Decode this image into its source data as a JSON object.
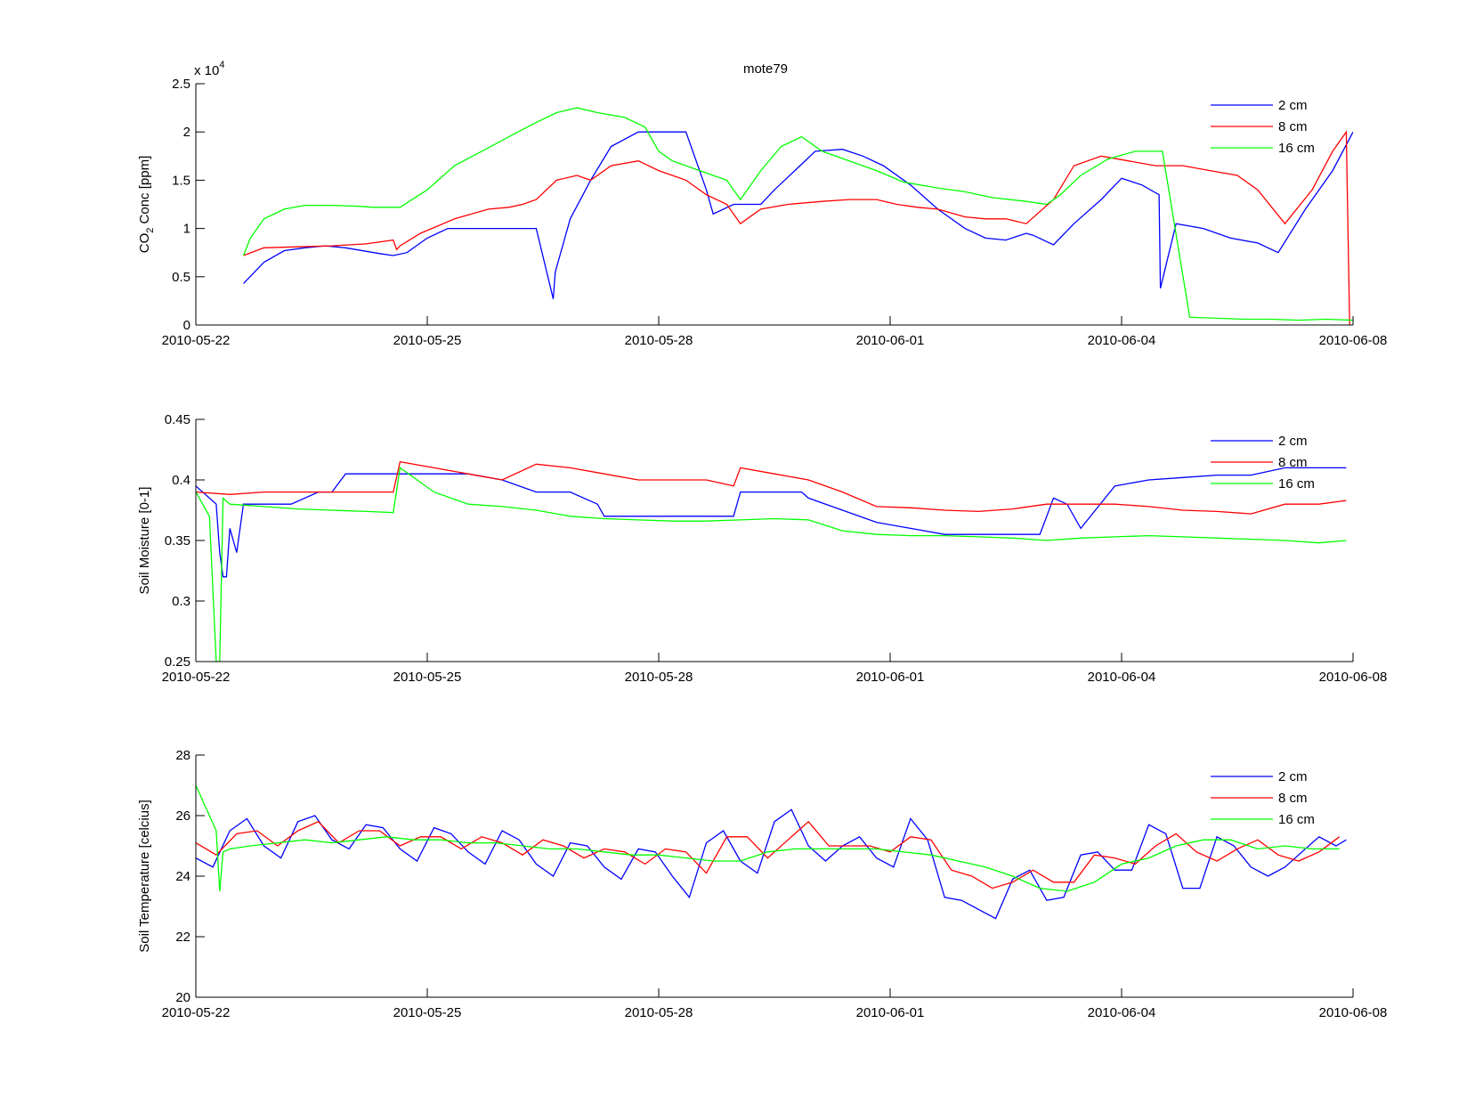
{
  "chart_data": [
    {
      "type": "line",
      "title": "mote79",
      "ylabel_main": "CO",
      "ylabel_sub": "2",
      "ylabel_rest": " Conc [ppm]",
      "exponent_base": "x 10",
      "exponent_power": "4",
      "xlim": [
        0,
        17
      ],
      "ylim": [
        0,
        2.5
      ],
      "ytick_values": [
        0,
        0.5,
        1,
        1.5,
        2,
        2.5
      ],
      "ytick_labels": [
        "0",
        "0.5",
        "1",
        "1.5",
        "2",
        "2.5"
      ],
      "legend_position": "top-right",
      "series": [
        {
          "name": "2 cm",
          "color": "#0000ff",
          "x": [
            0.7,
            1.0,
            1.3,
            1.6,
            1.9,
            2.2,
            2.7,
            2.9,
            3.1,
            3.4,
            3.7,
            3.8,
            4.2,
            4.6,
            5.0,
            5.25,
            5.28,
            5.5,
            5.8,
            6.1,
            6.5,
            6.8,
            7.2,
            7.5,
            7.6,
            7.9,
            8.3,
            8.5,
            8.8,
            9.1,
            9.5,
            9.8,
            10.1,
            10.5,
            10.9,
            11.3,
            11.6,
            11.9,
            12.2,
            12.3,
            12.6,
            12.9,
            13.3,
            13.6,
            13.9,
            14.15,
            14.17,
            14.4,
            14.8,
            15.2,
            15.6,
            15.9,
            16.3,
            16.7,
            17.0
          ],
          "y": [
            0.43,
            0.65,
            0.77,
            0.8,
            0.82,
            0.8,
            0.74,
            0.72,
            0.75,
            0.9,
            1.0,
            1.0,
            1.0,
            1.0,
            1.0,
            0.27,
            0.55,
            1.1,
            1.5,
            1.85,
            2.0,
            2.0,
            2.0,
            1.4,
            1.15,
            1.25,
            1.25,
            1.4,
            1.6,
            1.8,
            1.82,
            1.75,
            1.65,
            1.45,
            1.2,
            1.0,
            0.9,
            0.88,
            0.95,
            0.93,
            0.83,
            1.05,
            1.3,
            1.52,
            1.45,
            1.35,
            0.38,
            1.05,
            1.0,
            0.9,
            0.85,
            0.75,
            1.2,
            1.6,
            2.0
          ]
        },
        {
          "name": "8 cm",
          "color": "#ff0000",
          "x": [
            0.7,
            1.0,
            1.5,
            2.0,
            2.5,
            2.9,
            2.95,
            3.0,
            3.3,
            3.8,
            4.3,
            4.6,
            4.8,
            5.0,
            5.3,
            5.6,
            5.8,
            6.1,
            6.5,
            6.8,
            7.2,
            7.5,
            7.8,
            8.0,
            8.3,
            8.7,
            9.2,
            9.6,
            10.0,
            10.3,
            10.6,
            10.9,
            11.3,
            11.6,
            11.9,
            12.2,
            12.6,
            12.9,
            13.3,
            13.7,
            14.1,
            14.5,
            14.9,
            15.3,
            15.6,
            16.0,
            16.4,
            16.7,
            16.9,
            16.95
          ],
          "y": [
            0.72,
            0.8,
            0.81,
            0.82,
            0.84,
            0.88,
            0.78,
            0.82,
            0.95,
            1.1,
            1.2,
            1.22,
            1.25,
            1.3,
            1.5,
            1.55,
            1.5,
            1.65,
            1.7,
            1.6,
            1.5,
            1.35,
            1.25,
            1.05,
            1.2,
            1.25,
            1.28,
            1.3,
            1.3,
            1.25,
            1.22,
            1.2,
            1.12,
            1.1,
            1.1,
            1.05,
            1.3,
            1.65,
            1.75,
            1.7,
            1.65,
            1.65,
            1.6,
            1.55,
            1.4,
            1.05,
            1.4,
            1.8,
            2.0,
            0.0
          ]
        },
        {
          "name": "16 cm",
          "color": "#00ff00",
          "x": [
            0.7,
            0.8,
            1.0,
            1.3,
            1.6,
            2.0,
            2.4,
            2.6,
            2.8,
            3.0,
            3.4,
            3.8,
            4.2,
            4.6,
            5.0,
            5.3,
            5.6,
            5.9,
            6.3,
            6.6,
            6.8,
            7.0,
            7.4,
            7.8,
            8.0,
            8.3,
            8.6,
            8.9,
            9.2,
            9.6,
            10.0,
            10.4,
            10.9,
            11.3,
            11.7,
            12.2,
            12.5,
            12.7,
            13.0,
            13.4,
            13.8,
            14.2,
            14.6,
            15.0,
            15.4,
            15.8,
            16.2,
            16.6,
            17.0
          ],
          "y": [
            0.72,
            0.9,
            1.1,
            1.2,
            1.24,
            1.24,
            1.23,
            1.22,
            1.22,
            1.22,
            1.4,
            1.65,
            1.8,
            1.95,
            2.1,
            2.2,
            2.25,
            2.2,
            2.15,
            2.05,
            1.8,
            1.7,
            1.6,
            1.5,
            1.3,
            1.6,
            1.85,
            1.95,
            1.8,
            1.7,
            1.6,
            1.48,
            1.42,
            1.38,
            1.32,
            1.28,
            1.25,
            1.35,
            1.55,
            1.72,
            1.8,
            1.8,
            0.08,
            0.07,
            0.06,
            0.06,
            0.05,
            0.06,
            0.05
          ]
        }
      ],
      "xtick_labels": [
        "2010-05-22",
        "2010-05-25",
        "2010-05-28",
        "2010-06-01",
        "2010-06-04",
        "2010-06-08"
      ]
    },
    {
      "type": "line",
      "ylabel": "Soil Moisture [0-1]",
      "xlim": [
        0,
        17
      ],
      "ylim": [
        0.25,
        0.45
      ],
      "ytick_values": [
        0.25,
        0.3,
        0.35,
        0.4,
        0.45
      ],
      "ytick_labels": [
        "0.25",
        "0.3",
        "0.35",
        "0.4",
        "0.45"
      ],
      "legend_position": "top-right",
      "series": [
        {
          "name": "2 cm",
          "color": "#0000ff",
          "x": [
            0.0,
            0.2,
            0.3,
            0.35,
            0.4,
            0.45,
            0.5,
            0.6,
            0.7,
            0.8,
            1.0,
            1.4,
            1.8,
            2.0,
            2.2,
            2.6,
            3.0,
            3.5,
            4.0,
            4.5,
            5.0,
            5.5,
            5.9,
            6.0,
            6.5,
            7.0,
            7.5,
            7.9,
            8.0,
            8.5,
            8.9,
            9.0,
            9.5,
            10.0,
            10.5,
            11.0,
            11.5,
            11.9,
            12.0,
            12.1,
            12.4,
            12.5,
            12.6,
            12.8,
            13.0,
            13.5,
            14.0,
            14.5,
            15.0,
            15.5,
            16.0,
            16.5,
            16.9
          ],
          "y": [
            0.395,
            0.385,
            0.38,
            0.34,
            0.32,
            0.32,
            0.36,
            0.34,
            0.38,
            0.38,
            0.38,
            0.38,
            0.39,
            0.39,
            0.405,
            0.405,
            0.405,
            0.405,
            0.405,
            0.4,
            0.39,
            0.39,
            0.38,
            0.37,
            0.37,
            0.37,
            0.37,
            0.37,
            0.39,
            0.39,
            0.39,
            0.385,
            0.375,
            0.365,
            0.36,
            0.355,
            0.355,
            0.355,
            0.355,
            0.355,
            0.355,
            0.37,
            0.385,
            0.38,
            0.36,
            0.395,
            0.4,
            0.402,
            0.404,
            0.404,
            0.41,
            0.41,
            0.41
          ]
        },
        {
          "name": "8 cm",
          "color": "#ff0000",
          "x": [
            0.0,
            0.5,
            1.0,
            1.5,
            2.0,
            2.5,
            2.9,
            3.0,
            3.5,
            4.0,
            4.5,
            5.0,
            5.5,
            6.0,
            6.5,
            7.0,
            7.5,
            7.9,
            8.0,
            8.5,
            9.0,
            9.5,
            10.0,
            10.5,
            11.0,
            11.5,
            12.0,
            12.5,
            13.0,
            13.5,
            14.0,
            14.5,
            15.0,
            15.5,
            16.0,
            16.5,
            16.9
          ],
          "y": [
            0.39,
            0.388,
            0.39,
            0.39,
            0.39,
            0.39,
            0.39,
            0.415,
            0.41,
            0.405,
            0.4,
            0.413,
            0.41,
            0.405,
            0.4,
            0.4,
            0.4,
            0.395,
            0.41,
            0.405,
            0.4,
            0.39,
            0.378,
            0.377,
            0.375,
            0.374,
            0.376,
            0.38,
            0.38,
            0.38,
            0.378,
            0.375,
            0.374,
            0.372,
            0.38,
            0.38,
            0.383
          ]
        },
        {
          "name": "16 cm",
          "color": "#00ff00",
          "x": [
            0.0,
            0.2,
            0.3,
            0.35,
            0.4,
            0.5,
            1.0,
            1.5,
            2.0,
            2.5,
            2.9,
            3.0,
            3.5,
            4.0,
            4.5,
            5.0,
            5.5,
            6.0,
            6.5,
            7.0,
            7.5,
            8.0,
            8.5,
            9.0,
            9.5,
            10.0,
            10.5,
            11.0,
            11.5,
            12.0,
            12.5,
            13.0,
            13.5,
            14.0,
            14.5,
            15.0,
            15.5,
            16.0,
            16.5,
            16.9
          ],
          "y": [
            0.39,
            0.37,
            0.25,
            0.25,
            0.385,
            0.38,
            0.378,
            0.376,
            0.375,
            0.374,
            0.373,
            0.41,
            0.39,
            0.38,
            0.378,
            0.375,
            0.37,
            0.368,
            0.367,
            0.366,
            0.366,
            0.367,
            0.368,
            0.367,
            0.358,
            0.355,
            0.354,
            0.354,
            0.353,
            0.352,
            0.35,
            0.352,
            0.353,
            0.354,
            0.353,
            0.352,
            0.351,
            0.35,
            0.348,
            0.35
          ]
        }
      ],
      "xtick_labels": [
        "2010-05-22",
        "2010-05-25",
        "2010-05-28",
        "2010-06-01",
        "2010-06-04",
        "2010-06-08"
      ]
    },
    {
      "type": "line",
      "ylabel": "Soil Temperature [celcius]",
      "xlim": [
        0,
        17
      ],
      "ylim": [
        20,
        28
      ],
      "ytick_values": [
        20,
        22,
        24,
        26,
        28
      ],
      "ytick_labels": [
        "20",
        "22",
        "24",
        "26",
        "28"
      ],
      "legend_position": "top-right",
      "series": [
        {
          "name": "2 cm",
          "color": "#0000ff",
          "x": [
            0.0,
            0.25,
            0.5,
            0.75,
            1.0,
            1.25,
            1.5,
            1.75,
            2.0,
            2.25,
            2.5,
            2.75,
            3.0,
            3.25,
            3.5,
            3.75,
            4.0,
            4.25,
            4.5,
            4.75,
            5.0,
            5.25,
            5.5,
            5.75,
            6.0,
            6.25,
            6.5,
            6.75,
            7.0,
            7.25,
            7.5,
            7.75,
            8.0,
            8.25,
            8.5,
            8.75,
            9.0,
            9.25,
            9.5,
            9.75,
            10.0,
            10.25,
            10.5,
            10.75,
            11.0,
            11.25,
            11.5,
            11.75,
            12.0,
            12.25,
            12.5,
            12.75,
            13.0,
            13.25,
            13.5,
            13.75,
            14.0,
            14.25,
            14.5,
            14.75,
            15.0,
            15.25,
            15.5,
            15.75,
            16.0,
            16.25,
            16.5,
            16.75,
            16.9
          ],
          "y": [
            24.6,
            24.3,
            25.5,
            25.9,
            25.0,
            24.6,
            25.8,
            26.0,
            25.2,
            24.9,
            25.7,
            25.6,
            24.9,
            24.5,
            25.6,
            25.4,
            24.8,
            24.4,
            25.5,
            25.2,
            24.4,
            24.0,
            25.1,
            25.0,
            24.3,
            23.9,
            24.9,
            24.8,
            24.0,
            23.3,
            25.1,
            25.5,
            24.5,
            24.1,
            25.8,
            26.2,
            25.0,
            24.5,
            25.0,
            25.3,
            24.6,
            24.3,
            25.9,
            25.2,
            23.3,
            23.2,
            22.9,
            22.6,
            23.9,
            24.2,
            23.2,
            23.3,
            24.7,
            24.8,
            24.2,
            24.2,
            25.7,
            25.4,
            23.6,
            23.6,
            25.3,
            25.0,
            24.3,
            24.0,
            24.3,
            24.8,
            25.3,
            25.0,
            25.2
          ]
        },
        {
          "name": "8 cm",
          "color": "#ff0000",
          "x": [
            0.0,
            0.3,
            0.6,
            0.9,
            1.2,
            1.5,
            1.8,
            2.1,
            2.4,
            2.7,
            3.0,
            3.3,
            3.6,
            3.9,
            4.2,
            4.5,
            4.8,
            5.1,
            5.4,
            5.7,
            6.0,
            6.3,
            6.6,
            6.9,
            7.2,
            7.5,
            7.8,
            8.1,
            8.4,
            8.7,
            9.0,
            9.3,
            9.6,
            9.9,
            10.2,
            10.5,
            10.8,
            11.1,
            11.4,
            11.7,
            12.0,
            12.3,
            12.6,
            12.9,
            13.2,
            13.5,
            13.8,
            14.1,
            14.4,
            14.7,
            15.0,
            15.3,
            15.6,
            15.9,
            16.2,
            16.5,
            16.8
          ],
          "y": [
            25.1,
            24.7,
            25.4,
            25.5,
            25.0,
            25.5,
            25.8,
            25.1,
            25.5,
            25.5,
            25.0,
            25.3,
            25.3,
            24.9,
            25.3,
            25.1,
            24.7,
            25.2,
            25.0,
            24.6,
            24.9,
            24.8,
            24.4,
            24.9,
            24.8,
            24.1,
            25.3,
            25.3,
            24.6,
            25.2,
            25.8,
            25.0,
            25.0,
            25.0,
            24.8,
            25.3,
            25.2,
            24.2,
            24.0,
            23.6,
            23.8,
            24.2,
            23.8,
            23.8,
            24.7,
            24.6,
            24.4,
            25.0,
            25.4,
            24.8,
            24.5,
            24.9,
            25.2,
            24.7,
            24.5,
            24.8,
            25.3
          ]
        },
        {
          "name": "16 cm",
          "color": "#00ff00",
          "x": [
            0.0,
            0.1,
            0.2,
            0.3,
            0.35,
            0.4,
            0.5,
            0.8,
            1.2,
            1.6,
            2.0,
            2.4,
            2.8,
            3.2,
            3.6,
            4.0,
            4.4,
            4.8,
            5.2,
            5.6,
            6.0,
            6.4,
            6.8,
            7.2,
            7.6,
            8.0,
            8.4,
            8.8,
            9.2,
            9.6,
            10.0,
            10.4,
            10.8,
            11.2,
            11.6,
            12.0,
            12.4,
            12.8,
            13.2,
            13.6,
            14.0,
            14.4,
            14.8,
            15.2,
            15.6,
            16.0,
            16.4,
            16.8
          ],
          "y": [
            27.0,
            26.5,
            26.0,
            25.5,
            23.5,
            24.8,
            24.9,
            25.0,
            25.1,
            25.2,
            25.1,
            25.2,
            25.3,
            25.2,
            25.2,
            25.1,
            25.1,
            25.0,
            24.9,
            24.9,
            24.8,
            24.7,
            24.7,
            24.6,
            24.5,
            24.5,
            24.8,
            24.9,
            24.9,
            24.9,
            24.9,
            24.8,
            24.7,
            24.5,
            24.3,
            24.0,
            23.6,
            23.5,
            23.8,
            24.4,
            24.6,
            25.0,
            25.2,
            25.2,
            24.9,
            25.0,
            24.9,
            24.9
          ]
        }
      ],
      "xtick_labels": [
        "2010-05-22",
        "2010-05-25",
        "2010-05-28",
        "2010-06-01",
        "2010-06-04",
        "2010-06-08"
      ]
    }
  ]
}
